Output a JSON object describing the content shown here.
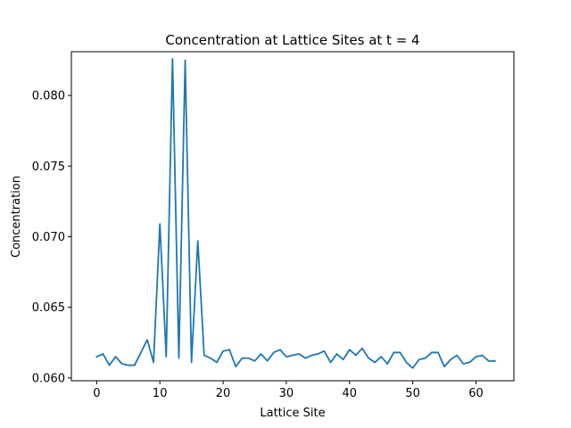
{
  "chart_data": {
    "type": "line",
    "title": "Concentration at Lattice Sites at t = 4",
    "xlabel": "Lattice Site",
    "ylabel": "Concentration",
    "xlim": [
      -4,
      66
    ],
    "ylim": [
      0.0598,
      0.0831
    ],
    "xticks": [
      0,
      10,
      20,
      30,
      40,
      50,
      60
    ],
    "xtick_labels": [
      "0",
      "10",
      "20",
      "30",
      "40",
      "50",
      "60"
    ],
    "yticks": [
      0.06,
      0.065,
      0.07,
      0.075,
      0.08
    ],
    "ytick_labels": [
      "0.060",
      "0.065",
      "0.070",
      "0.075",
      "0.080"
    ],
    "grid": false,
    "legend": "none",
    "series": [
      {
        "color": "#1f77b4",
        "x": [
          0,
          1,
          2,
          3,
          4,
          5,
          6,
          7,
          8,
          9,
          10,
          11,
          12,
          13,
          14,
          15,
          16,
          17,
          18,
          19,
          20,
          21,
          22,
          23,
          24,
          25,
          26,
          27,
          28,
          29,
          30,
          31,
          32,
          33,
          34,
          35,
          36,
          37,
          38,
          39,
          40,
          41,
          42,
          43,
          44,
          45,
          46,
          47,
          48,
          49,
          50,
          51,
          52,
          53,
          54,
          55,
          56,
          57,
          58,
          59,
          60,
          61,
          62,
          63
        ],
        "values": [
          0.0615,
          0.0617,
          0.0609,
          0.0615,
          0.061,
          0.0609,
          0.0609,
          0.0618,
          0.0627,
          0.0611,
          0.0709,
          0.0615,
          0.0826,
          0.0614,
          0.0825,
          0.0611,
          0.0697,
          0.0616,
          0.0614,
          0.0611,
          0.0619,
          0.062,
          0.0608,
          0.0614,
          0.0614,
          0.0612,
          0.0617,
          0.0612,
          0.0618,
          0.062,
          0.0615,
          0.0616,
          0.0617,
          0.0614,
          0.0616,
          0.0617,
          0.0619,
          0.0611,
          0.0617,
          0.0613,
          0.062,
          0.0616,
          0.0621,
          0.0614,
          0.0611,
          0.0615,
          0.061,
          0.0618,
          0.0618,
          0.0611,
          0.0607,
          0.0613,
          0.0614,
          0.0618,
          0.0618,
          0.0608,
          0.0613,
          0.0616,
          0.061,
          0.0611,
          0.0615,
          0.0616,
          0.0612,
          0.0612
        ]
      }
    ]
  }
}
